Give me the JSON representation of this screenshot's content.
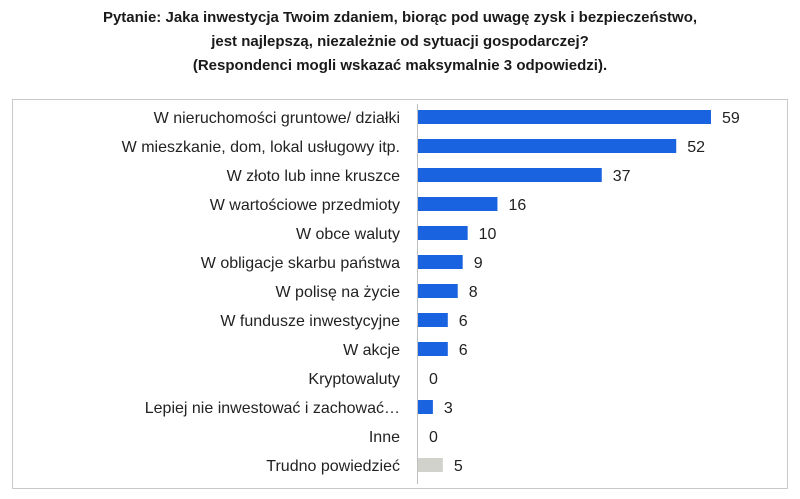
{
  "title_lines": [
    "Pytanie: Jaka inwestycja Twoim zdaniem, biorąc pod uwagę zysk i bezpieczeństwo,",
    "jest najlepszą, niezależnie od sytuacji gospodarczej?",
    "(Respondenci mogli wskazać maksymalnie 3 odpowiedzi)."
  ],
  "colors": {
    "bar": "#1a63e0",
    "bar_muted": "#d2d2cc"
  },
  "chart_data": {
    "type": "bar",
    "orientation": "horizontal",
    "categories": [
      "W nieruchomości gruntowe/ działki",
      "W mieszkanie, dom, lokal usługowy itp.",
      "W złoto lub inne kruszce",
      "W wartościowe przedmioty",
      "W obce waluty",
      "W obligacje skarbu państwa",
      "W polisę na życie",
      "W fundusze inwestycyjne",
      "W akcje",
      "Kryptowaluty",
      "Lepiej nie inwestować i zachować…",
      "Inne",
      "Trudno powiedzieć"
    ],
    "values": [
      59,
      52,
      37,
      16,
      10,
      9,
      8,
      6,
      6,
      0,
      3,
      0,
      5
    ],
    "bar_colors": [
      "#1a63e0",
      "#1a63e0",
      "#1a63e0",
      "#1a63e0",
      "#1a63e0",
      "#1a63e0",
      "#1a63e0",
      "#1a63e0",
      "#1a63e0",
      "#1a63e0",
      "#1a63e0",
      "#1a63e0",
      "#d2d2cc"
    ],
    "data_labels": [
      "59",
      "52",
      "37",
      "16",
      "10",
      "9",
      "8",
      "6",
      "6",
      "0",
      "3",
      "0",
      "5"
    ],
    "xlim": [
      0,
      59
    ],
    "grid": false,
    "legend": "none"
  }
}
